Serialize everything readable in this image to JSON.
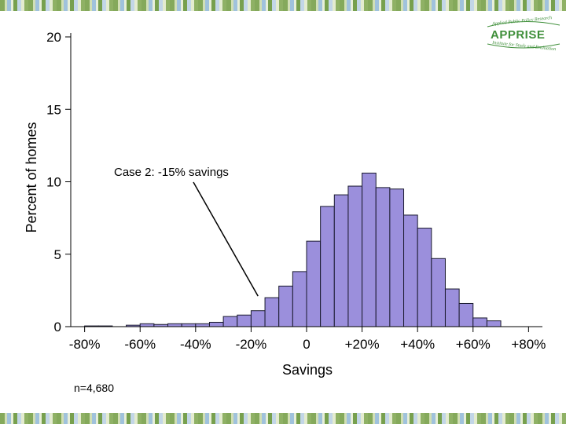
{
  "logo": {
    "name": "APPRISE",
    "tagline_top": "Applied Public Policy Research",
    "tagline_bottom": "Institute for Study and Evaluation"
  },
  "chart_data": {
    "type": "bar",
    "title": "",
    "xlabel": "Savings",
    "ylabel": "Percent of homes",
    "xlim": [
      -85,
      85
    ],
    "ylim": [
      0,
      20
    ],
    "x_ticks": [
      -80,
      -60,
      -40,
      -20,
      0,
      20,
      40,
      60,
      80
    ],
    "x_tick_labels": [
      "-80%",
      "-60%",
      "-40%",
      "-20%",
      "0",
      "+20%",
      "+40%",
      "+60%",
      "+80%"
    ],
    "y_ticks": [
      0,
      5,
      10,
      15,
      20
    ],
    "y_tick_labels": [
      "0",
      "5",
      "10",
      "15",
      "20"
    ],
    "bin_width": 5,
    "bins": [
      {
        "start": -80,
        "value": 0.05
      },
      {
        "start": -75,
        "value": 0.05
      },
      {
        "start": -65,
        "value": 0.1
      },
      {
        "start": -60,
        "value": 0.2
      },
      {
        "start": -55,
        "value": 0.15
      },
      {
        "start": -50,
        "value": 0.2
      },
      {
        "start": -45,
        "value": 0.2
      },
      {
        "start": -40,
        "value": 0.2
      },
      {
        "start": -35,
        "value": 0.3
      },
      {
        "start": -30,
        "value": 0.7
      },
      {
        "start": -25,
        "value": 0.8
      },
      {
        "start": -20,
        "value": 1.1
      },
      {
        "start": -15,
        "value": 2.0
      },
      {
        "start": -10,
        "value": 2.8
      },
      {
        "start": -5,
        "value": 3.8
      },
      {
        "start": 0,
        "value": 5.9
      },
      {
        "start": 5,
        "value": 8.3
      },
      {
        "start": 10,
        "value": 9.1
      },
      {
        "start": 15,
        "value": 9.7
      },
      {
        "start": 20,
        "value": 10.6
      },
      {
        "start": 25,
        "value": 9.6
      },
      {
        "start": 30,
        "value": 9.5
      },
      {
        "start": 35,
        "value": 7.7
      },
      {
        "start": 40,
        "value": 6.8
      },
      {
        "start": 45,
        "value": 4.7
      },
      {
        "start": 50,
        "value": 2.6
      },
      {
        "start": 55,
        "value": 1.6
      },
      {
        "start": 60,
        "value": 0.6
      },
      {
        "start": 65,
        "value": 0.4
      }
    ],
    "bar_color": "#9b8fdc",
    "annotation": {
      "text": "Case 2:  -15% savings",
      "points_to": {
        "x": -17.5,
        "y": 2.0
      }
    },
    "footnote": "n=4,680"
  }
}
